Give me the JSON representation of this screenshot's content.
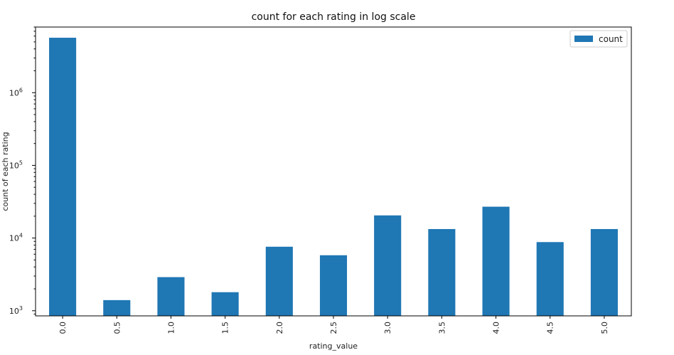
{
  "chart_data": {
    "type": "bar",
    "title": "count for each rating in log scale",
    "xlabel": "rating_value",
    "ylabel": "count of each rating",
    "yscale": "log",
    "ylim": [
      850,
      8000000
    ],
    "yticks": [
      1000,
      10000,
      100000,
      1000000
    ],
    "ytick_labels": [
      {
        "base": "10",
        "exp": "3"
      },
      {
        "base": "10",
        "exp": "4"
      },
      {
        "base": "10",
        "exp": "5"
      },
      {
        "base": "10",
        "exp": "6"
      }
    ],
    "categories": [
      "0.0",
      "0.5",
      "1.0",
      "1.5",
      "2.0",
      "2.5",
      "3.0",
      "3.5",
      "4.0",
      "4.5",
      "5.0"
    ],
    "series": [
      {
        "name": "count",
        "color": "#1f77b4",
        "values": [
          5700000,
          1400,
          2900,
          1800,
          7600,
          5800,
          20500,
          13300,
          27000,
          8800,
          13300
        ]
      }
    ],
    "legend": {
      "position": "top-right",
      "label": "count"
    },
    "grid": false
  }
}
